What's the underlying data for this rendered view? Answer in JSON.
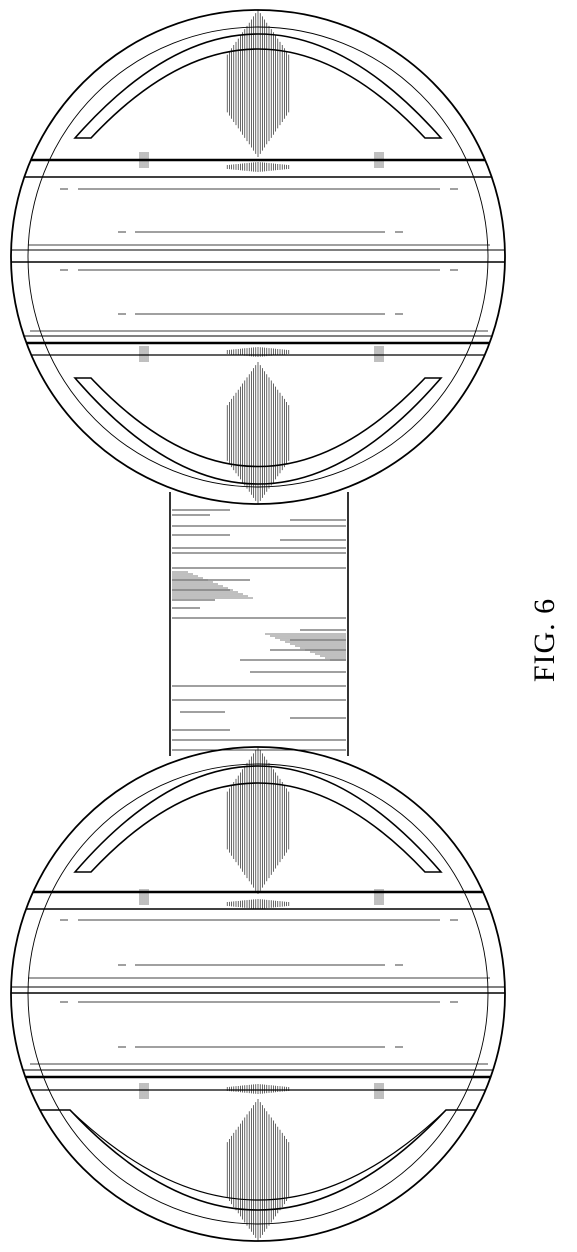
{
  "figure": {
    "label": "FIG. 6",
    "ink_color": "#000000",
    "paper_color": "#ffffff"
  },
  "parts": {
    "top_end": {
      "icon": "spherical-end-cap"
    },
    "middle": {
      "icon": "cylindrical-connector"
    },
    "bottom_end": {
      "icon": "spherical-end-cap"
    }
  }
}
